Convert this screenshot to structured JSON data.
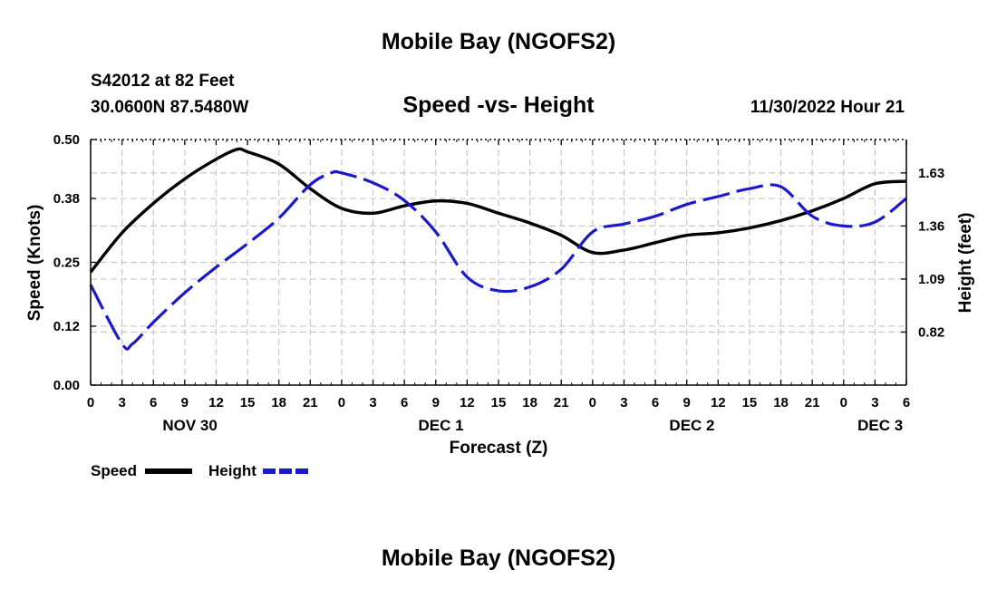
{
  "title": "Mobile Bay (NGOFS2)",
  "station": {
    "line1": "S42012 at 82 Feet",
    "line2": "30.0600N  87.5480W"
  },
  "subtitle": "Speed -vs- Height",
  "datetime": "11/30/2022 Hour 21",
  "footer_title": "Mobile Bay (NGOFS2)",
  "colors": {
    "speed": "#000000",
    "height": "#1a1acc"
  },
  "chart_data": {
    "type": "line",
    "title": "Speed -vs- Height",
    "xlabel": "Forecast (Z)",
    "ylabel": "Speed (Knots)",
    "y2label": "Height (feet)",
    "x_unit": "hours from 2022-11-30 00Z",
    "xlim": [
      0,
      78
    ],
    "xticks": [
      0,
      3,
      6,
      9,
      12,
      15,
      18,
      21,
      24,
      27,
      30,
      33,
      36,
      39,
      42,
      45,
      48,
      51,
      54,
      57,
      60,
      63,
      66,
      69,
      72,
      75,
      78
    ],
    "xtick_labels": [
      "0",
      "3",
      "6",
      "9",
      "12",
      "15",
      "18",
      "21",
      "0",
      "3",
      "6",
      "9",
      "12",
      "15",
      "18",
      "21",
      "0",
      "3",
      "6",
      "9",
      "12",
      "15",
      "18",
      "21",
      "0",
      "3",
      "6"
    ],
    "day_labels": [
      {
        "label": "NOV 30",
        "x": 9.5
      },
      {
        "label": "DEC 1",
        "x": 33.5
      },
      {
        "label": "DEC 2",
        "x": 57.5
      },
      {
        "label": "DEC 3",
        "x": 75.5
      }
    ],
    "ylim": [
      0,
      0.5
    ],
    "yticks": [
      0.0,
      0.12,
      0.25,
      0.38,
      0.5
    ],
    "ytick_labels": [
      "0.00",
      "0.12",
      "0.25",
      "0.38",
      "0.50"
    ],
    "y2lim": [
      0.55,
      1.8
    ],
    "y2ticks": [
      0.82,
      1.09,
      1.36,
      1.63
    ],
    "y2tick_labels": [
      "0.82",
      "1.09",
      "1.36",
      "1.63"
    ],
    "grid": true,
    "legend_position": "bottom-left",
    "series": [
      {
        "name": "Speed",
        "axis": "left",
        "color": "#000000",
        "style": "solid",
        "x": [
          0,
          3,
          6,
          9,
          12,
          14,
          15,
          18,
          21,
          24,
          27,
          30,
          33,
          36,
          39,
          42,
          45,
          48,
          51,
          54,
          57,
          60,
          63,
          66,
          69,
          72,
          75,
          78
        ],
        "y": [
          0.23,
          0.31,
          0.37,
          0.42,
          0.46,
          0.48,
          0.475,
          0.45,
          0.4,
          0.36,
          0.35,
          0.365,
          0.375,
          0.37,
          0.35,
          0.33,
          0.305,
          0.27,
          0.275,
          0.29,
          0.305,
          0.31,
          0.32,
          0.335,
          0.355,
          0.38,
          0.41,
          0.415
        ]
      },
      {
        "name": "Height",
        "axis": "right",
        "color": "#1a1acc",
        "style": "dashed",
        "x": [
          0,
          3,
          4,
          6,
          9,
          12,
          15,
          18,
          21,
          23,
          24,
          27,
          30,
          33,
          36,
          39,
          42,
          45,
          48,
          51,
          54,
          57,
          60,
          63,
          66,
          69,
          72,
          75,
          78
        ],
        "y": [
          1.06,
          0.76,
          0.76,
          0.87,
          1.02,
          1.15,
          1.27,
          1.4,
          1.57,
          1.63,
          1.63,
          1.58,
          1.49,
          1.33,
          1.1,
          1.03,
          1.05,
          1.14,
          1.33,
          1.37,
          1.41,
          1.47,
          1.51,
          1.55,
          1.56,
          1.41,
          1.36,
          1.38,
          1.5
        ]
      }
    ]
  }
}
